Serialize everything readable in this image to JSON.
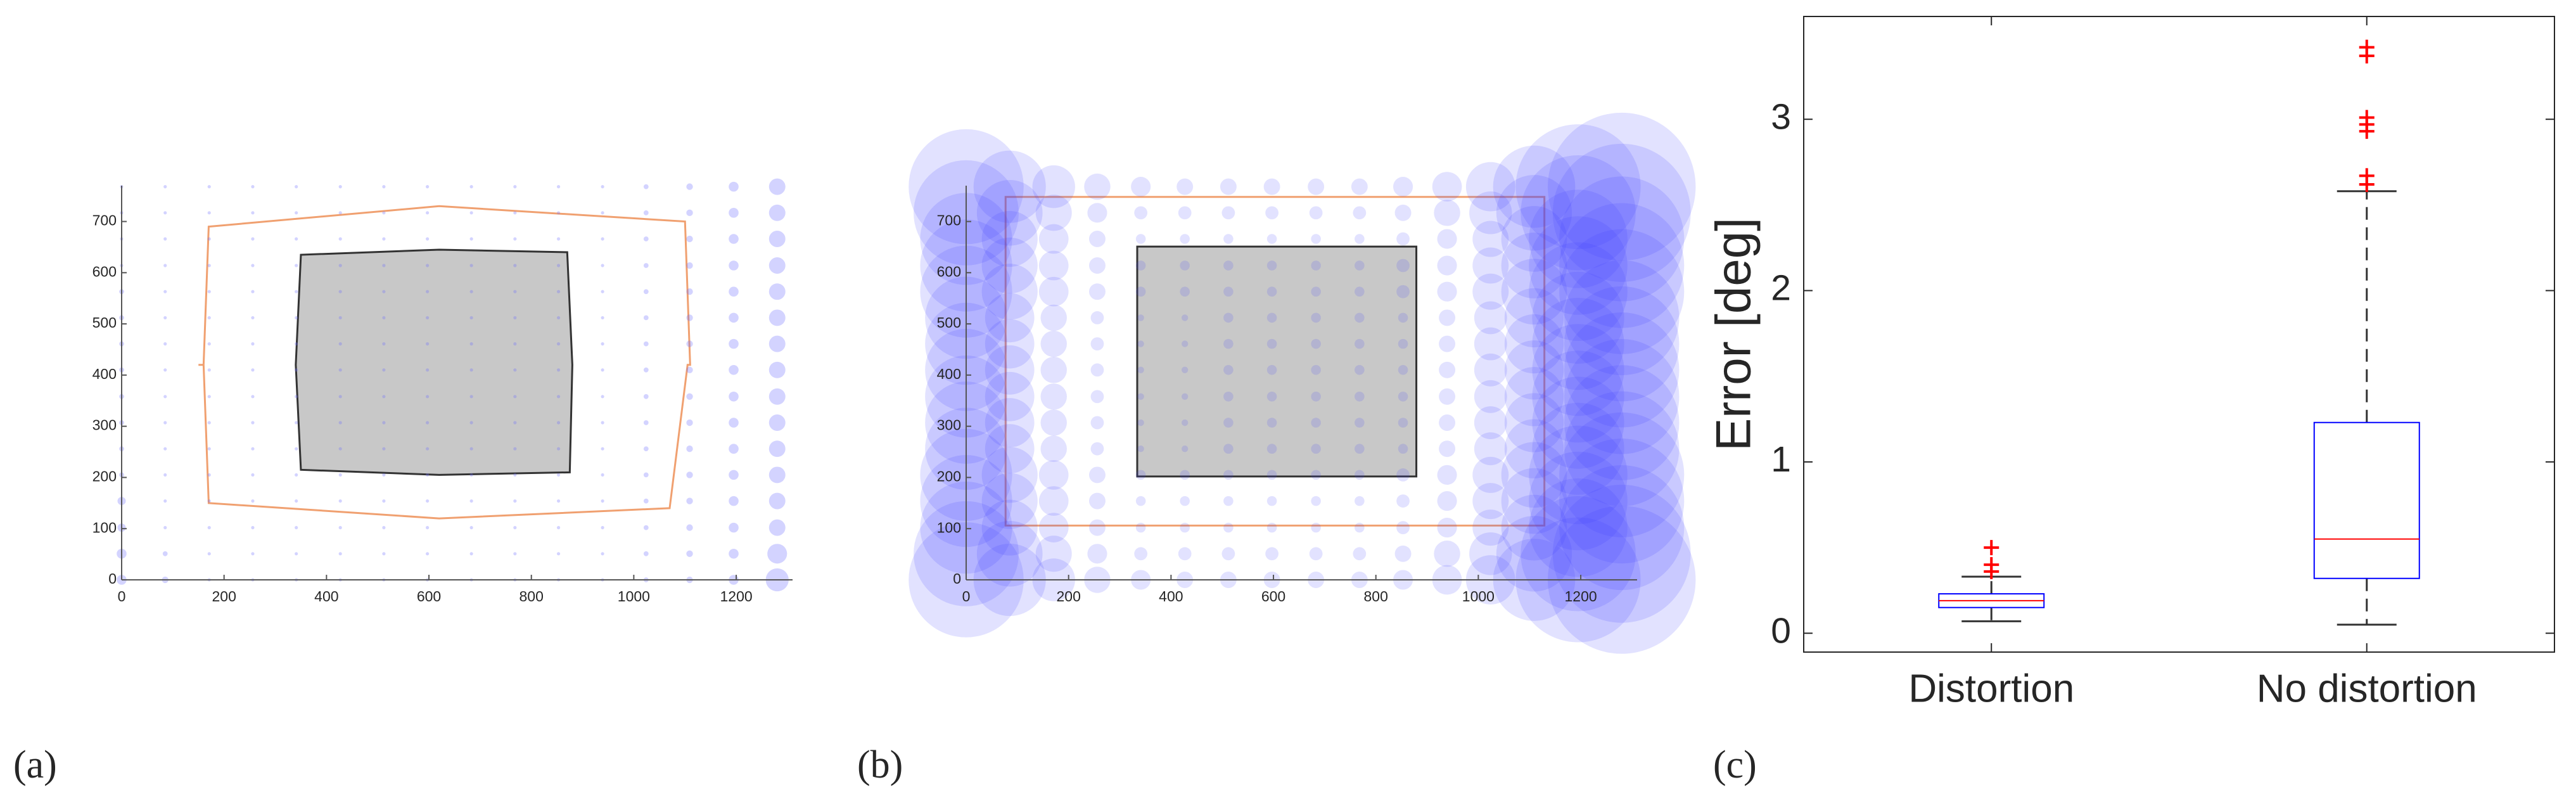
{
  "chart_data": [
    {
      "type": "scatter",
      "label": "(a)",
      "x": [
        0,
        85,
        171,
        256,
        341,
        427,
        512,
        597,
        683,
        768,
        853,
        939,
        1024,
        1109,
        1195,
        1280
      ],
      "y": [
        0,
        51,
        102,
        154,
        205,
        256,
        307,
        358,
        410,
        461,
        512,
        563,
        614,
        666,
        717,
        768
      ],
      "sizes": [
        [
          3,
          2,
          1,
          1,
          1,
          1,
          1,
          1,
          1,
          1,
          1,
          1,
          1.5,
          2,
          3,
          7
        ],
        [
          3,
          1.5,
          1,
          1,
          1,
          1,
          1,
          1,
          1,
          1,
          1,
          1,
          1.5,
          2,
          3,
          6
        ],
        [
          2.5,
          1,
          1,
          1,
          1,
          1,
          1,
          1,
          1,
          1,
          1,
          1,
          1.5,
          2,
          3,
          5
        ],
        [
          2.5,
          1,
          1,
          1,
          1,
          1,
          1,
          1,
          1,
          1,
          1,
          1,
          1.5,
          2,
          3,
          5
        ],
        [
          1.5,
          1,
          1,
          1,
          1,
          1,
          1,
          1,
          1,
          1,
          1,
          1,
          1.5,
          2,
          3,
          5
        ],
        [
          1.5,
          1,
          1,
          1,
          1,
          1,
          1,
          1,
          1,
          1,
          1,
          1,
          1.5,
          2,
          3,
          5
        ],
        [
          1.5,
          1,
          1,
          1,
          1,
          1,
          1,
          1,
          1,
          1,
          1,
          1,
          1.5,
          2,
          3,
          5
        ],
        [
          1.5,
          1,
          1,
          1,
          1,
          1,
          1,
          1,
          1,
          1,
          1,
          1,
          1.5,
          2,
          3,
          5
        ],
        [
          1.5,
          1,
          1,
          1,
          1,
          1,
          1,
          1,
          1,
          1,
          1,
          1,
          1.5,
          2,
          3,
          5
        ],
        [
          1.5,
          1,
          1,
          1,
          1,
          1,
          1,
          1,
          1,
          1,
          1,
          1,
          1.5,
          2,
          3,
          5
        ],
        [
          1.5,
          1,
          1,
          1,
          1,
          1,
          1,
          1,
          1,
          1,
          1,
          1,
          1.5,
          2,
          3,
          5
        ],
        [
          1.5,
          1,
          1,
          1,
          1,
          1,
          1,
          1,
          1,
          1,
          1,
          1,
          1.5,
          2,
          3,
          5
        ],
        [
          1,
          1,
          1,
          1,
          1,
          1,
          1,
          1,
          1,
          1,
          1,
          1,
          1.5,
          2,
          3,
          5
        ],
        [
          1,
          1,
          1,
          1,
          1,
          1,
          1,
          1,
          1,
          1,
          1,
          1,
          1.5,
          2,
          3,
          5
        ],
        [
          1,
          1,
          1,
          1,
          1,
          1,
          1,
          1,
          1,
          1,
          1,
          1,
          1.5,
          2,
          3,
          5
        ],
        [
          1,
          1,
          1,
          1,
          1,
          1,
          1,
          1,
          1,
          1,
          1,
          1,
          1.5,
          2,
          3,
          5
        ]
      ],
      "color": "rgba(110,110,255,0.3)",
      "regions": [
        {
          "x": [
            170,
            160,
            150,
            160,
            170,
            620,
            1100,
            1110,
            1110,
            1105,
            1070,
            620
          ],
          "y": [
            150,
            420,
            420,
            420,
            690,
            730,
            700,
            420,
            420,
            420,
            140,
            120
          ],
          "color": "#f0a070",
          "fill": "none"
        },
        {
          "x": [
            350,
            340,
            350,
            620,
            870,
            880,
            875,
            620
          ],
          "y": [
            215,
            420,
            635,
            645,
            640,
            420,
            210,
            205
          ],
          "color": "#333333",
          "fill": "#c8c8c8"
        }
      ],
      "xlim": [
        0,
        1310
      ],
      "ylim": [
        0,
        770
      ],
      "xticks": [
        0,
        200,
        400,
        600,
        800,
        1000,
        1200
      ],
      "yticks": [
        0,
        100,
        200,
        300,
        400,
        500,
        600,
        700
      ]
    },
    {
      "type": "scatter",
      "label": "(b)",
      "x": [
        0,
        85,
        171,
        256,
        341,
        427,
        512,
        597,
        683,
        768,
        853,
        939,
        1024,
        1109,
        1195,
        1280
      ],
      "y": [
        0,
        51,
        102,
        154,
        205,
        256,
        307,
        358,
        410,
        461,
        512,
        563,
        614,
        666,
        717,
        768
      ],
      "sizes": [
        [
          35,
          22,
          13,
          8,
          6,
          5,
          5,
          5,
          5,
          5,
          6,
          9,
          15,
          25,
          38,
          45
        ],
        [
          32,
          20,
          11,
          6,
          4,
          4,
          4,
          4,
          4,
          4,
          5,
          8,
          13,
          23,
          35,
          42
        ],
        [
          28,
          17,
          9,
          5,
          3,
          3,
          3,
          3,
          3,
          3,
          4,
          6,
          11,
          20,
          30,
          38
        ],
        [
          28,
          17,
          9,
          5,
          3,
          3,
          3,
          3,
          3,
          3,
          4,
          6,
          11,
          20,
          30,
          38
        ],
        [
          28,
          17,
          9,
          5,
          3,
          3,
          3,
          3,
          3,
          3,
          4,
          6,
          11,
          20,
          30,
          38
        ],
        [
          25,
          15,
          8,
          4,
          2,
          2,
          3,
          3,
          3,
          3,
          3,
          5,
          10,
          18,
          28,
          35
        ],
        [
          25,
          15,
          8,
          4,
          2,
          2,
          3,
          3,
          3,
          3,
          3,
          5,
          10,
          18,
          28,
          35
        ],
        [
          25,
          15,
          8,
          4,
          2,
          2,
          3,
          3,
          3,
          3,
          3,
          5,
          10,
          18,
          28,
          35
        ],
        [
          25,
          15,
          8,
          4,
          2,
          2,
          3,
          3,
          3,
          3,
          3,
          5,
          10,
          18,
          28,
          35
        ],
        [
          25,
          15,
          8,
          4,
          2,
          2,
          3,
          3,
          3,
          3,
          3,
          5,
          10,
          18,
          28,
          35
        ],
        [
          25,
          15,
          8,
          4,
          2,
          2,
          3,
          3,
          3,
          3,
          3,
          5,
          10,
          18,
          28,
          35
        ],
        [
          28,
          17,
          9,
          5,
          3,
          3,
          3,
          3,
          3,
          3,
          4,
          6,
          11,
          20,
          30,
          38
        ],
        [
          28,
          17,
          9,
          5,
          3,
          3,
          3,
          3,
          3,
          3,
          4,
          6,
          11,
          20,
          30,
          38
        ],
        [
          28,
          17,
          9,
          5,
          3,
          3,
          3,
          3,
          3,
          3,
          4,
          6,
          11,
          20,
          30,
          38
        ],
        [
          32,
          20,
          11,
          6,
          4,
          4,
          4,
          4,
          4,
          4,
          5,
          8,
          13,
          23,
          35,
          42
        ],
        [
          35,
          22,
          13,
          8,
          6,
          5,
          5,
          5,
          5,
          5,
          6,
          9,
          15,
          25,
          38,
          45
        ]
      ],
      "color": "rgba(60,60,255,0.15)",
      "regions": [
        {
          "x": [
            77,
            77,
            1129,
            1129
          ],
          "y": [
            106,
            748,
            748,
            106
          ],
          "color": "#f0a070",
          "fill": "none"
        },
        {
          "x": [
            334,
            334,
            879,
            879
          ],
          "y": [
            202,
            651,
            651,
            202
          ],
          "color": "#333333",
          "fill": "#c8c8c8"
        }
      ],
      "xlim": [
        0,
        1310
      ],
      "ylim": [
        0,
        770
      ],
      "xticks": [
        0,
        200,
        400,
        600,
        800,
        1000,
        1200
      ],
      "yticks": [
        0,
        100,
        200,
        300,
        400,
        500,
        600,
        700
      ]
    },
    {
      "type": "box",
      "label": "(c)",
      "ylabel": "Error [deg]",
      "categories": [
        "Distortion",
        "No distortion"
      ],
      "min": [
        0.07,
        0.05
      ],
      "q1": [
        0.15,
        0.32
      ],
      "median": [
        0.19,
        0.55
      ],
      "q3": [
        0.23,
        1.23
      ],
      "max": [
        0.33,
        2.58
      ],
      "outliers": [
        [
          0.36,
          0.4,
          0.5
        ],
        [
          2.62,
          2.67,
          2.93,
          2.97,
          3.01,
          3.37,
          3.42
        ]
      ],
      "color": "#0000ff",
      "median_color": "#ff0000",
      "outlier_color": "#ff0000",
      "ylim": [
        -0.11,
        3.6
      ],
      "yticks": [
        0,
        1,
        2,
        3
      ]
    }
  ]
}
